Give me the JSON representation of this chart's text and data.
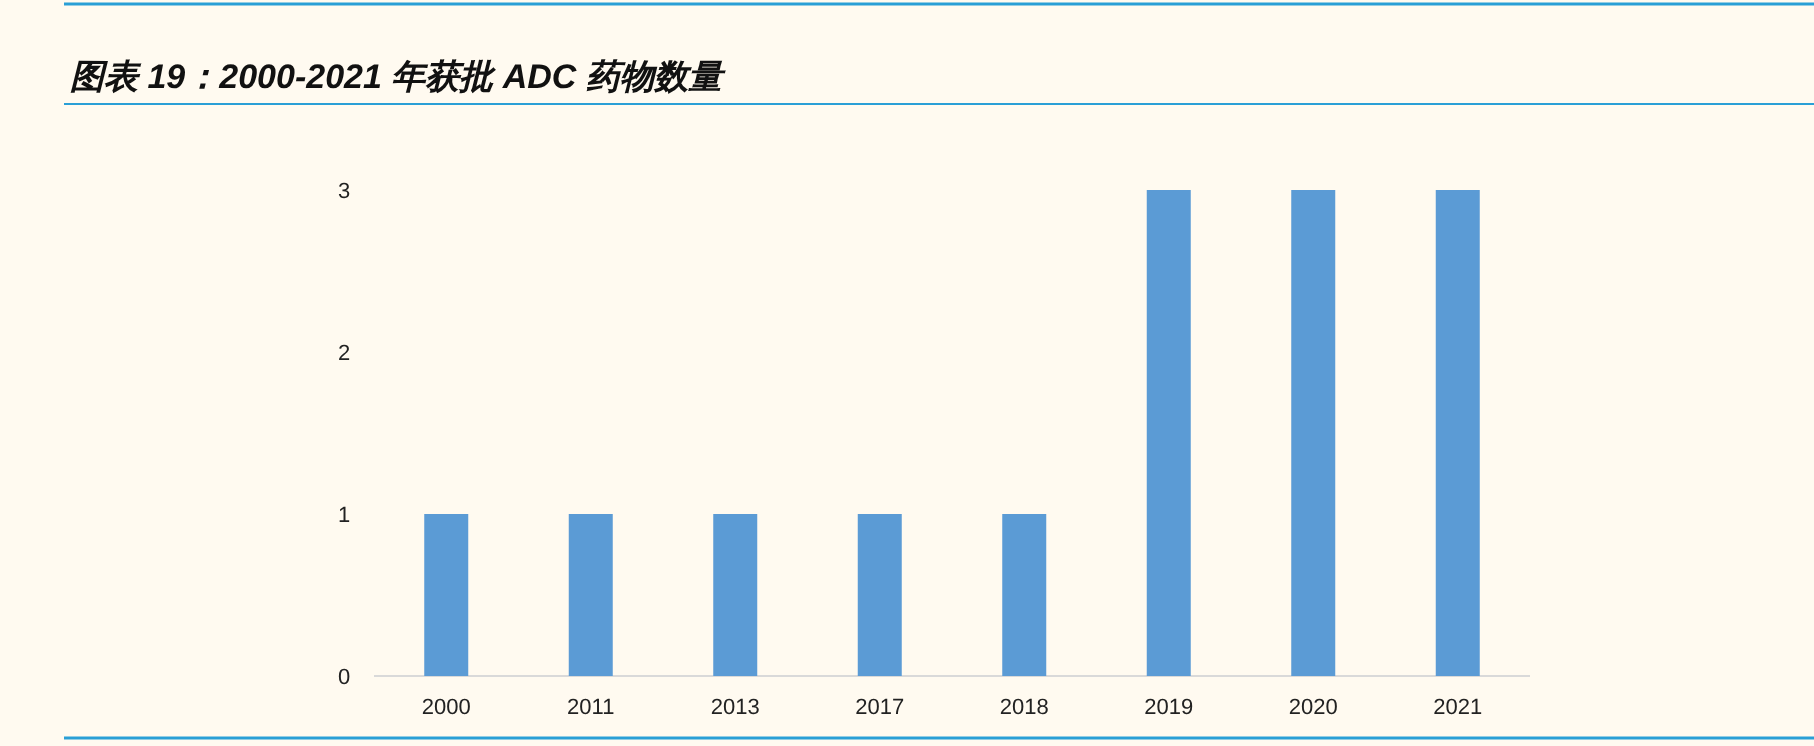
{
  "chart_data": {
    "type": "bar",
    "title": "图表 19：2000-2021 年获批 ADC 药物数量",
    "categories": [
      "2000",
      "2011",
      "2013",
      "2017",
      "2018",
      "2019",
      "2020",
      "2021"
    ],
    "values": [
      1,
      1,
      1,
      1,
      1,
      3,
      3,
      3
    ],
    "color": "#5b9bd5",
    "ylim": [
      0,
      3
    ],
    "yticks": [
      0,
      1,
      2,
      3
    ]
  }
}
